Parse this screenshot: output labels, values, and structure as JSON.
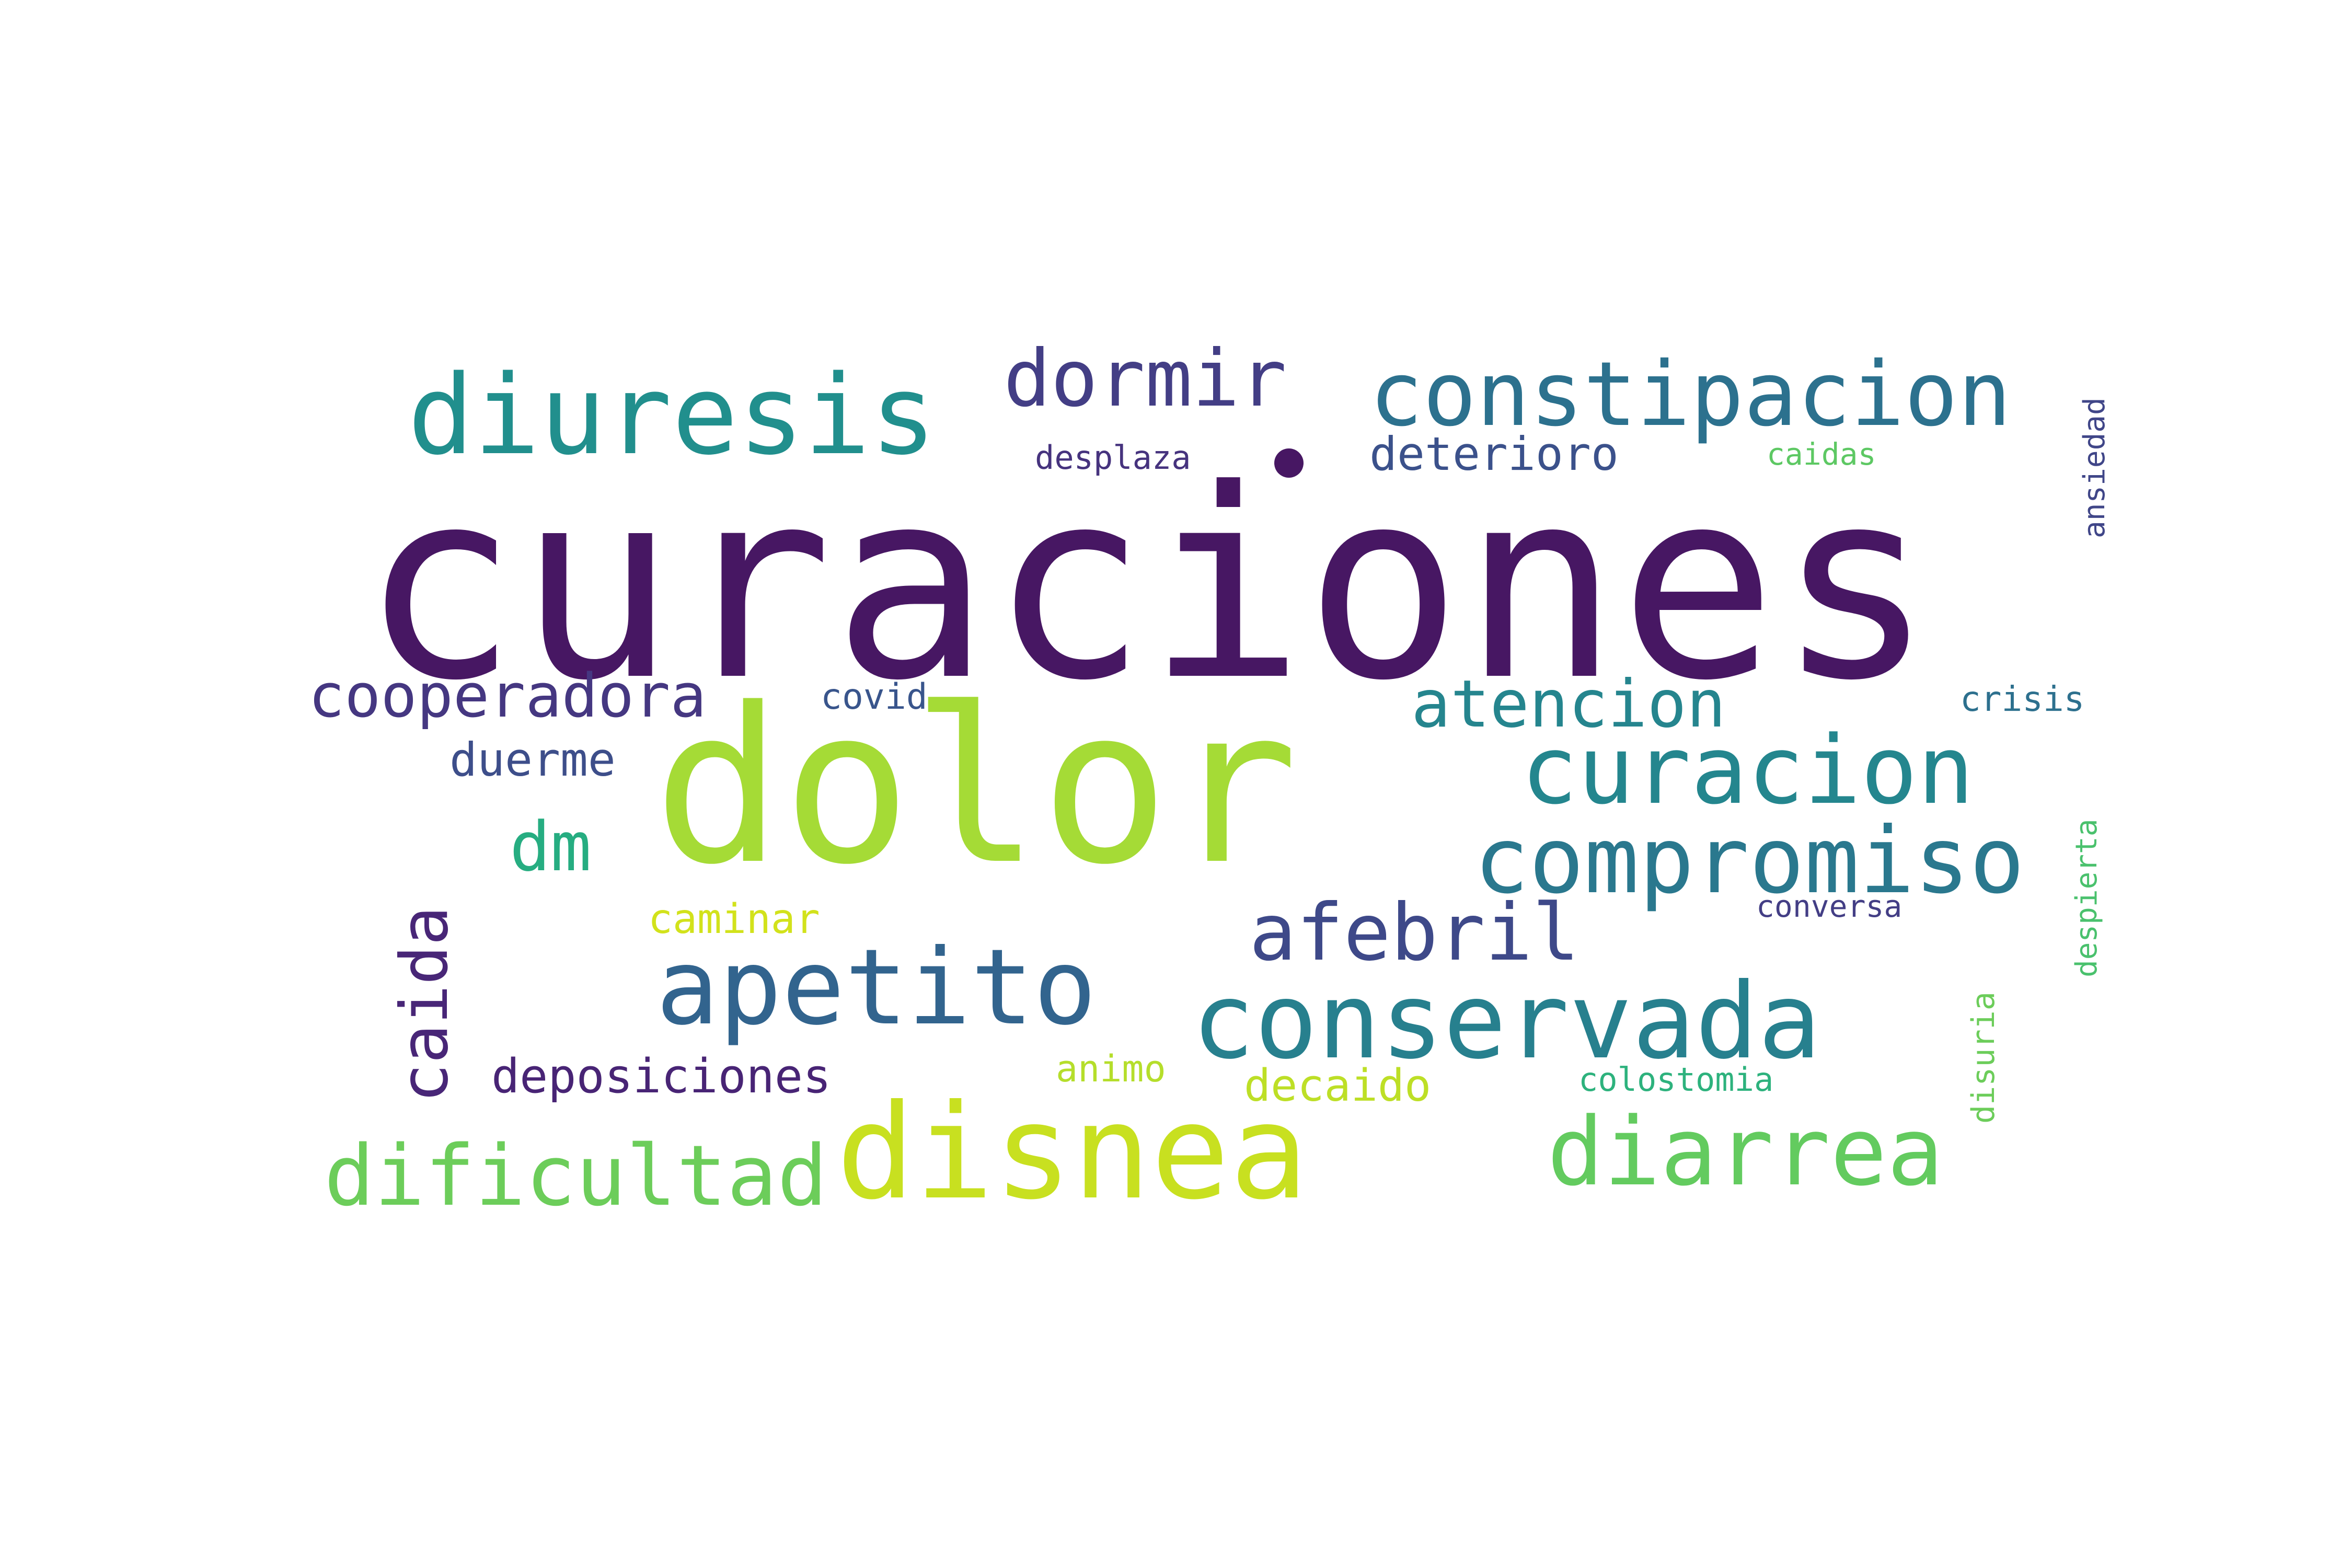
{
  "title": "",
  "palette": [
    "#440154",
    "#472d7b",
    "#3b528b",
    "#2c728e",
    "#21918c",
    "#28ae80",
    "#5ec962",
    "#addc30",
    "#fde725"
  ],
  "words": [
    {
      "text": "curaciones",
      "color": "#471763"
    },
    {
      "text": "dolor",
      "color": "#a5db36"
    },
    {
      "text": "diuresis",
      "color": "#218f8d"
    },
    {
      "text": "dormir",
      "color": "#433e85"
    },
    {
      "text": "constipacion",
      "color": "#2c718e"
    },
    {
      "text": "desplaza",
      "color": "#46337e"
    },
    {
      "text": "deterioro",
      "color": "#3b518b"
    },
    {
      "text": "caidas",
      "color": "#5dc863"
    },
    {
      "text": "ansiedad",
      "color": "#404688"
    },
    {
      "text": "cooperadora",
      "color": "#453781"
    },
    {
      "text": "covid",
      "color": "#39558c"
    },
    {
      "text": "atencion",
      "color": "#25858e"
    },
    {
      "text": "crisis",
      "color": "#2d708e"
    },
    {
      "text": "duerme",
      "color": "#3d4e8a"
    },
    {
      "text": "curacion",
      "color": "#24868e"
    },
    {
      "text": "dm",
      "color": "#26ad81"
    },
    {
      "text": "compromiso",
      "color": "#2a788e"
    },
    {
      "text": "caida",
      "color": "#482677"
    },
    {
      "text": "despierta",
      "color": "#4ac16d"
    },
    {
      "text": "caminar",
      "color": "#d2e21b"
    },
    {
      "text": "conversa",
      "color": "#433e85"
    },
    {
      "text": "afebril",
      "color": "#3e4989"
    },
    {
      "text": "apetito",
      "color": "#32648e"
    },
    {
      "text": "conservada",
      "color": "#27808e"
    },
    {
      "text": "disuria",
      "color": "#6ccd5a"
    },
    {
      "text": "deposiciones",
      "color": "#482475"
    },
    {
      "text": "animo",
      "color": "#b5de2b"
    },
    {
      "text": "decaido",
      "color": "#bddf26"
    },
    {
      "text": "colostomia",
      "color": "#2db27d"
    },
    {
      "text": "dificultad",
      "color": "#6ccd5a"
    },
    {
      "text": "disnea",
      "color": "#c8e020"
    },
    {
      "text": "diarrea",
      "color": "#63cb5f"
    }
  ]
}
